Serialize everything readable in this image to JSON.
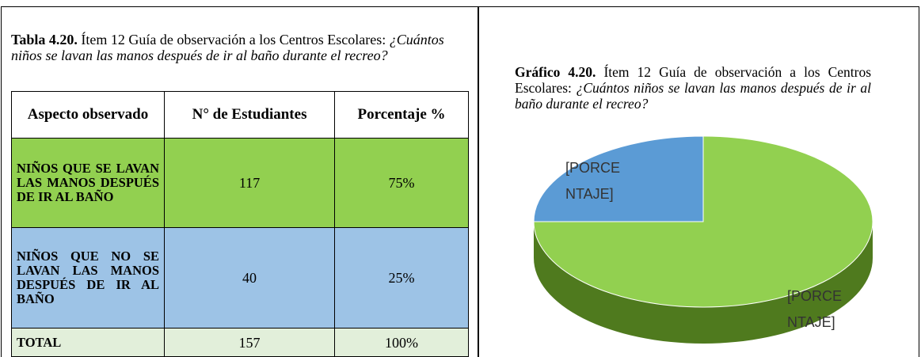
{
  "table": {
    "caption": {
      "label": "Tabla 4.20.",
      "text": "Ítem 12 Guía de observación a los Centros Escolares:",
      "question": "¿Cuántos niños se lavan las manos después de ir al baño durante el recreo?"
    },
    "header": [
      "Aspecto observado",
      "N° de Estudiantes",
      "Porcentaje %"
    ],
    "rows": [
      [
        "NIÑOS QUE SE LAVAN LAS MANOS DESPUÉS DE IR AL BAÑO",
        "117",
        "75%"
      ],
      [
        "NIÑOS QUE NO SE LAVAN LAS MANOS DESPUÉS DE IR AL BAÑO",
        "40",
        "25%"
      ],
      [
        "TOTAL",
        "157",
        "100%"
      ]
    ],
    "row_colors": [
      "#92d050",
      "#9dc3e6",
      "#e2efda"
    ]
  },
  "chart": {
    "type": "pie",
    "caption": {
      "label": "Gráfico 4.20.",
      "text": "Ítem 12 Guía de observación a los Centros Escolares:",
      "question": "¿Cuántos niños se lavan las manos después de ir al baño durante el recreo?"
    },
    "values": [
      75,
      25
    ],
    "colors": [
      "#92d050",
      "#5b9bd5"
    ],
    "side_color": "#4f7a1e",
    "labels": [
      [
        "[PORCE",
        "NTAJE]"
      ],
      [
        "[PORCE",
        "NTAJE]"
      ]
    ]
  }
}
